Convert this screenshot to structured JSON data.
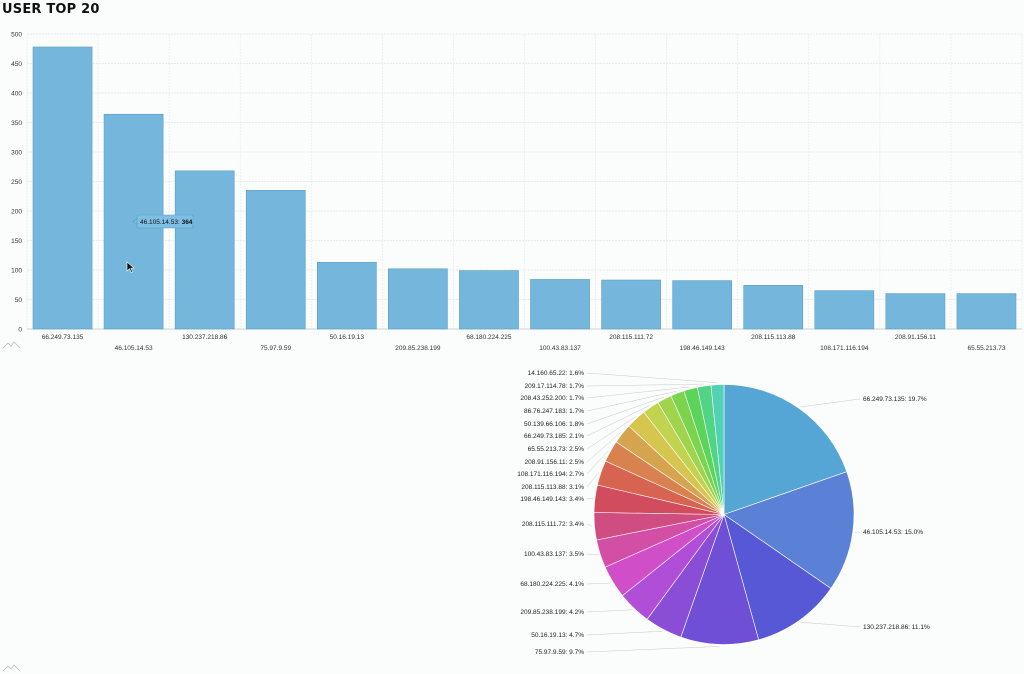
{
  "header": {
    "title": "USER TOP 20"
  },
  "chart_data": [
    {
      "type": "bar",
      "ylim": [
        0,
        500
      ],
      "yticks": [
        0,
        50,
        100,
        150,
        200,
        250,
        300,
        350,
        400,
        450,
        500
      ],
      "grid": true,
      "categories": [
        "66.249.73.135",
        "46.105.14.53",
        "130.237.218.86",
        "75.97.9.59",
        "50.16.19.13",
        "209.85.238.199",
        "68.180.224.225",
        "100.43.83.137",
        "208.115.111.72",
        "198.46.149.143",
        "208.115.113.88",
        "108.171.116.194",
        "208.91.156.11",
        "65.55.213.73"
      ],
      "values": [
        478,
        364,
        268,
        235,
        113,
        102,
        99,
        84,
        83,
        82,
        74,
        65,
        60,
        60
      ],
      "color": "#74b6dc",
      "tooltip": {
        "category": "46.105.14.53",
        "value": "364",
        "text": "46.105.14.53: "
      }
    },
    {
      "type": "pie",
      "slices": [
        {
          "label": "66.249.73.135: 19.7%",
          "value": 19.7,
          "color": "#55a6d4"
        },
        {
          "label": "46.105.14.53: 15.0%",
          "value": 15.0,
          "color": "#5b81d6"
        },
        {
          "label": "130.237.218.86: 11.1%",
          "value": 11.1,
          "color": "#5658d6"
        },
        {
          "label": "75.97.9.59: 9.7%",
          "value": 9.7,
          "color": "#6e4fd6"
        },
        {
          "label": "50.16.19.13: 4.7%",
          "value": 4.7,
          "color": "#8a4ed6"
        },
        {
          "label": "209.85.238.199: 4.2%",
          "value": 4.2,
          "color": "#b14ed8"
        },
        {
          "label": "68.180.224.225: 4.1%",
          "value": 4.1,
          "color": "#d04fc9"
        },
        {
          "label": "100.43.83.137: 3.5%",
          "value": 3.5,
          "color": "#d24fa5"
        },
        {
          "label": "208.115.111.72: 3.4%",
          "value": 3.4,
          "color": "#cf4d80"
        },
        {
          "label": "198.46.149.143: 3.4%",
          "value": 3.4,
          "color": "#d14c5c"
        },
        {
          "label": "208.115.113.88: 3.1%",
          "value": 3.1,
          "color": "#d66450"
        },
        {
          "label": "108.171.116.194: 2.7%",
          "value": 2.7,
          "color": "#d7824f"
        },
        {
          "label": "208.91.156.11: 2.5%",
          "value": 2.5,
          "color": "#d6a34f"
        },
        {
          "label": "65.55.213.73: 2.5%",
          "value": 2.5,
          "color": "#d6c54f"
        },
        {
          "label": "66.249.73.185: 2.1%",
          "value": 2.1,
          "color": "#c2d34f"
        },
        {
          "label": "50.139.66.106: 1.8%",
          "value": 1.8,
          "color": "#a0d44f"
        },
        {
          "label": "86.76.247.183: 1.7%",
          "value": 1.7,
          "color": "#7ad44f"
        },
        {
          "label": "208.43.252.200: 1.7%",
          "value": 1.7,
          "color": "#5bd45a"
        },
        {
          "label": "209.17.114.78: 1.7%",
          "value": 1.7,
          "color": "#52d487"
        },
        {
          "label": "14.160.65.22: 1.6%",
          "value": 1.6,
          "color": "#52d1b5"
        }
      ]
    }
  ]
}
